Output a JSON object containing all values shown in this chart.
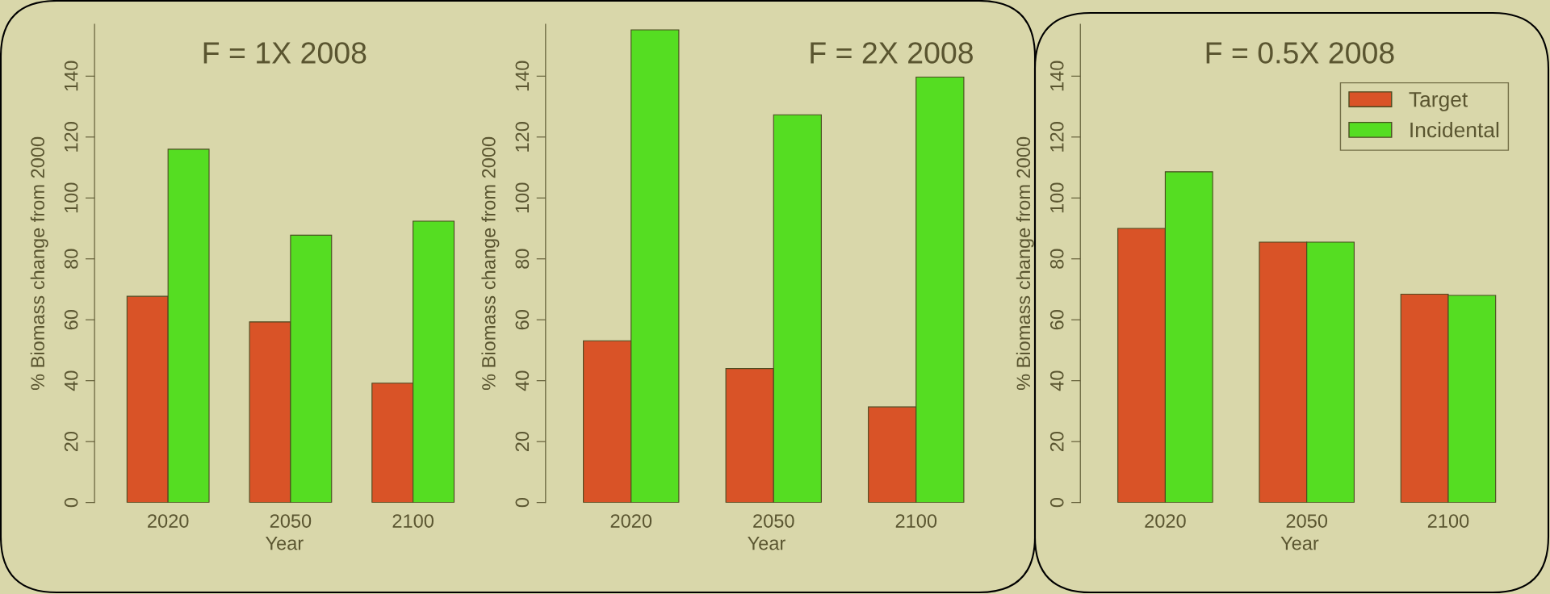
{
  "chart_data": [
    {
      "type": "bar",
      "title": "F = 1X 2008",
      "xlabel": "Year",
      "ylabel": "% Biomass change from 2000",
      "categories": [
        "2020",
        "2050",
        "2100"
      ],
      "series": [
        {
          "color": "#d95327",
          "values": [
            67.7,
            59.3,
            39.2
          ]
        },
        {
          "color": "#55dd22",
          "values": [
            116,
            87.8,
            92.4
          ]
        }
      ],
      "ylim": [
        0,
        157
      ],
      "yticks": [
        0,
        20,
        40,
        60,
        80,
        100,
        120,
        140
      ]
    },
    {
      "type": "bar",
      "title": "F = 2X 2008",
      "xlabel": "Year",
      "ylabel": "% Biomass change from 2000",
      "categories": [
        "2020",
        "2050",
        "2100"
      ],
      "series": [
        {
          "color": "#d95327",
          "values": [
            53.1,
            44,
            31.4
          ]
        },
        {
          "color": "#55dd22",
          "values": [
            155.2,
            127.3,
            139.7
          ]
        }
      ],
      "ylim": [
        0,
        157
      ],
      "yticks": [
        0,
        20,
        40,
        60,
        80,
        100,
        120,
        140
      ]
    },
    {
      "type": "bar",
      "title": "F = 0.5X 2008",
      "xlabel": "Year",
      "ylabel": "% Biomass change from 2000",
      "categories": [
        "2020",
        "2050",
        "2100"
      ],
      "series": [
        {
          "name": "Target",
          "color": "#d95327",
          "values": [
            90,
            85.5,
            68.4
          ]
        },
        {
          "name": "Incidental",
          "color": "#55dd22",
          "values": [
            108.6,
            85.5,
            68
          ]
        }
      ],
      "ylim": [
        0,
        157
      ],
      "yticks": [
        0,
        20,
        40,
        60,
        80,
        100,
        120,
        140
      ],
      "legend": "top right"
    }
  ]
}
